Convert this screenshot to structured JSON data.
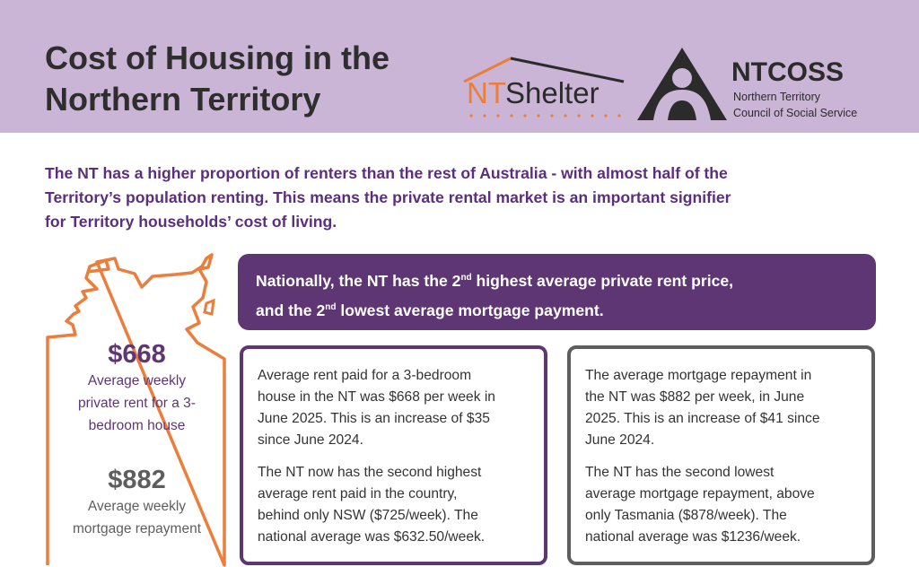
{
  "header": {
    "title_lines": [
      "Cost of Housing in the",
      "Northern Territory"
    ],
    "logos": {
      "ntshelter": {
        "nt": "NT",
        "shelter": "Shelter"
      },
      "ntcoss": {
        "name": "NTCOSS",
        "sub1": "Northern Territory",
        "sub2": "Council of Social Service"
      }
    }
  },
  "intro": {
    "lines": [
      "The NT has a higher proportion of renters than the rest of Australia - with almost half of the",
      "Territory’s population renting. This means the private rental market is an important signifier",
      "for Territory households’ cost of living."
    ]
  },
  "banner": {
    "l1a": "Nationally, the NT has the 2",
    "sup": "nd",
    "l1b": " highest average private rent price,",
    "l2a": "and the 2",
    "l2b": " lowest average mortgage payment."
  },
  "map_stats": {
    "rent_value": "$668",
    "rent_label": [
      "Average weekly",
      "private rent for a 3-",
      "bedroom house"
    ],
    "mortgage_value": "$882",
    "mortgage_label": [
      "Average weekly",
      "mortgage repayment"
    ]
  },
  "rent_card": {
    "p1": [
      "Average rent paid for a 3-bedroom",
      "house in the NT was $668 per week in",
      "June 2025. This is an increase of $35",
      "since June 2024."
    ],
    "p2": [
      "The NT now has the second highest",
      "average rent paid in the country,",
      "behind only NSW ($725/week). The",
      "national average was $632.50/week."
    ]
  },
  "mortgage_card": {
    "p1": [
      "The average mortgage repayment in",
      "the NT was $882 per week, in June",
      "2025. This is an increase of $41 since",
      "June 2024."
    ],
    "p2": [
      "The NT has the second lowest",
      "average mortgage repayment, above",
      "only Tasmania ($878/week). The",
      "national average was $1236/week."
    ]
  },
  "colors": {
    "header_bg": "#cbb5d6",
    "purple": "#5e3674",
    "orange": "#ec7d3b",
    "gray": "#5e5e5e"
  }
}
